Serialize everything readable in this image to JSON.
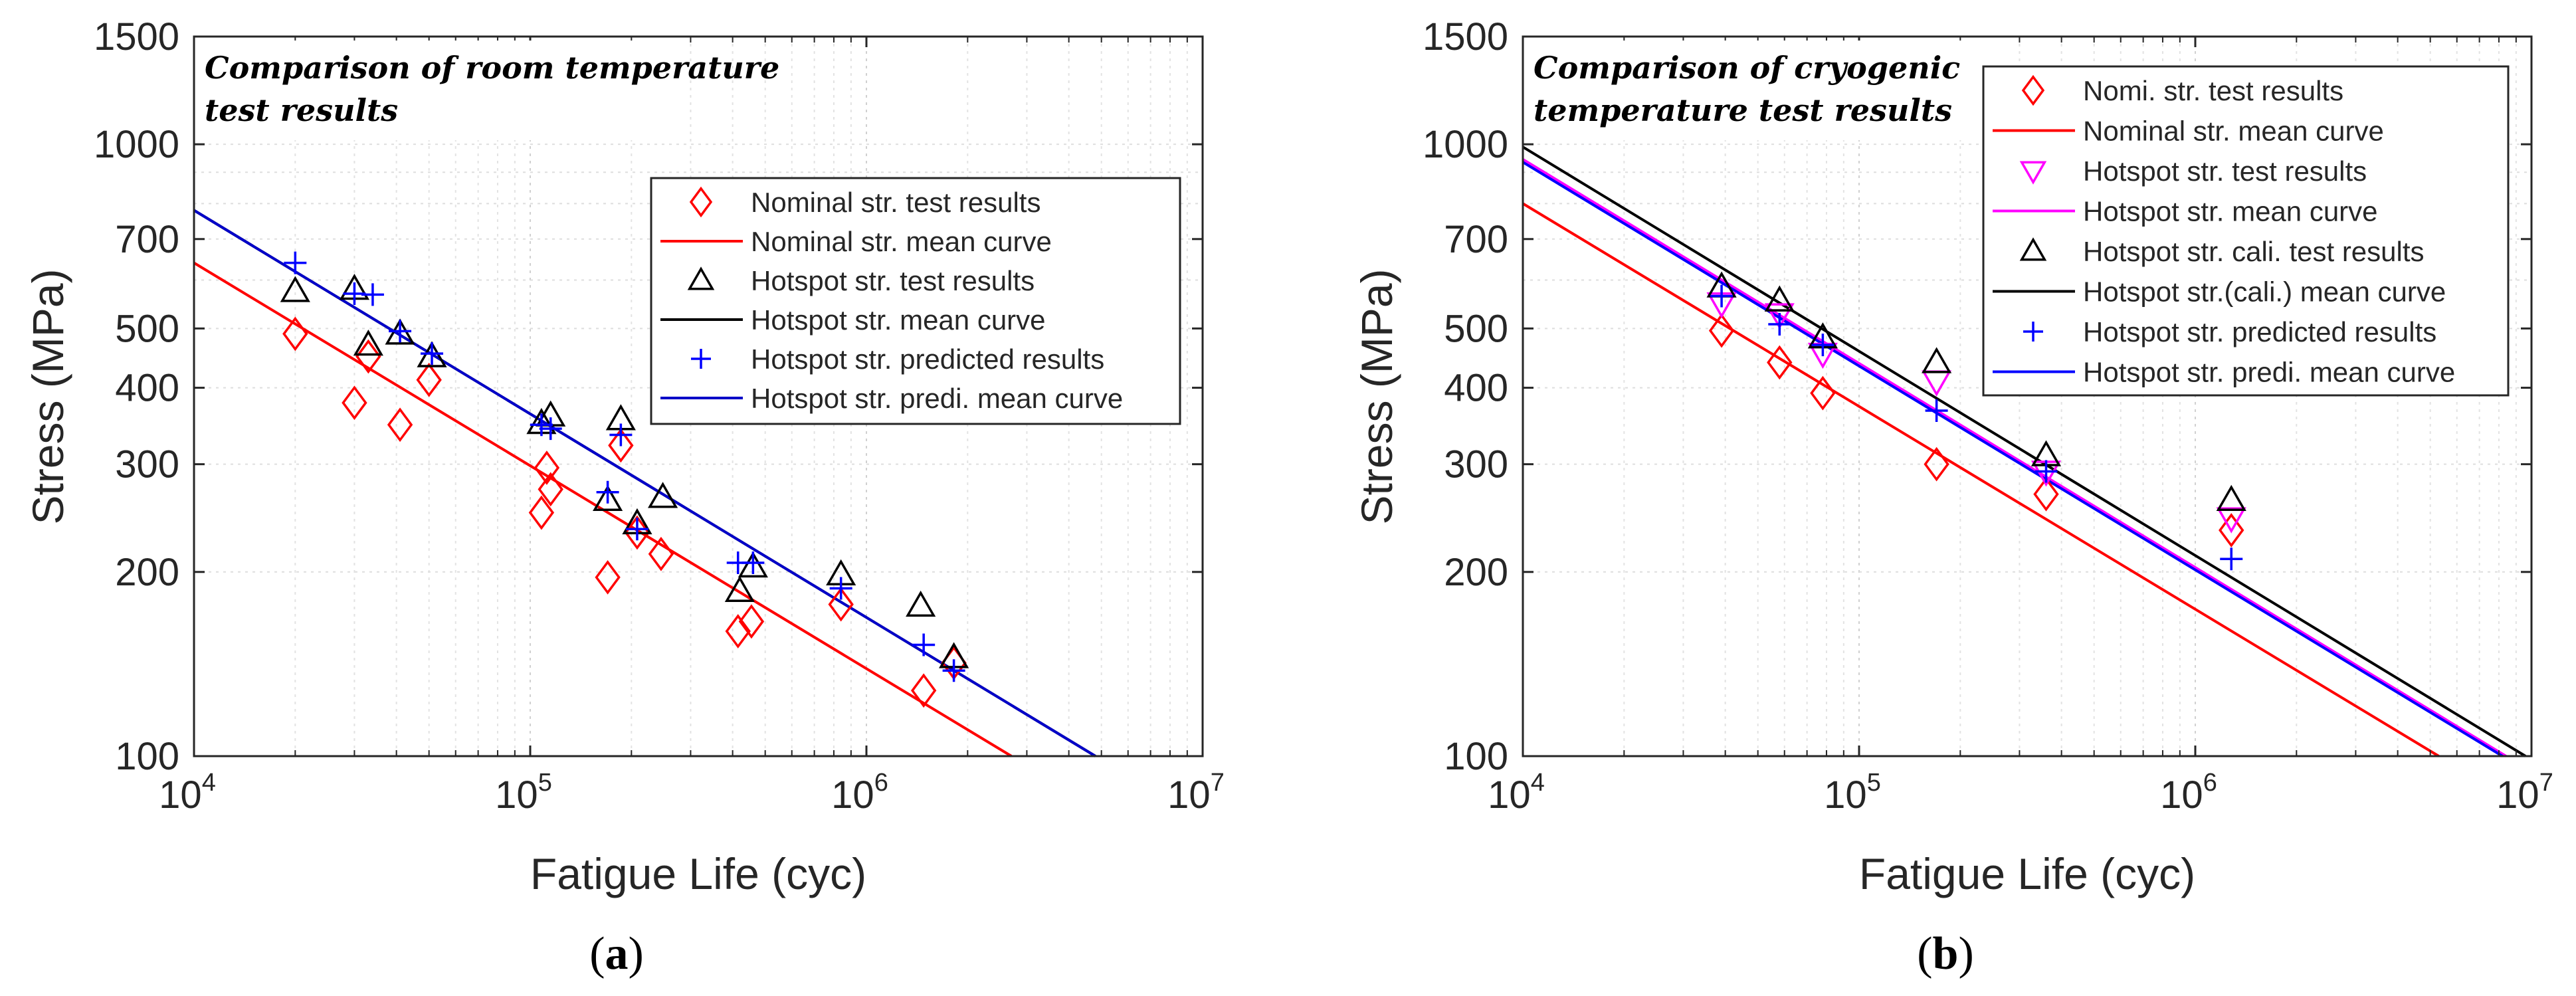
{
  "chart_data": [
    {
      "type": "scatter",
      "title": "Comparison of room temperature test results",
      "xlabel": "Fatigue Life (cyc)",
      "ylabel": "Stress (MPa)",
      "xscale": "log",
      "yscale": "log",
      "xlim": [
        10000,
        10000000
      ],
      "ylim": [
        100,
        1500
      ],
      "x_ticks": [
        10000,
        100000,
        1000000,
        10000000
      ],
      "x_tick_labels": [
        {
          "base": "10",
          "exp": "4"
        },
        {
          "base": "10",
          "exp": "5"
        },
        {
          "base": "10",
          "exp": "6"
        },
        {
          "base": "10",
          "exp": "7"
        }
      ],
      "y_ticks": [
        100,
        200,
        300,
        400,
        500,
        700,
        1000,
        1500
      ],
      "y_tick_labels": [
        "100",
        "200",
        "300",
        "400",
        "500",
        "700",
        "1000",
        "1500"
      ],
      "grid": true,
      "legend_position": "right",
      "caption": {
        "open": "(",
        "letter": "a",
        "close": ")"
      },
      "series": [
        {
          "name": "Nominal str. test results",
          "kind": "marker",
          "marker": "diamond",
          "color": "#ff0000",
          "x": [
            20000,
            30000,
            33000,
            41000,
            50000,
            108000,
            112000,
            115000,
            170000,
            186000,
            208000,
            245000,
            415000,
            455000,
            840000,
            1480000,
            1820000
          ],
          "y": [
            490,
            378,
            450,
            348,
            412,
            250,
            296,
            273,
            196,
            322,
            232,
            214,
            160,
            166,
            177,
            128,
            142
          ]
        },
        {
          "name": "Nominal str. mean curve",
          "kind": "line",
          "color": "#ff0000",
          "x": [
            10000,
            2700000
          ],
          "y": [
            640,
            100
          ]
        },
        {
          "name": "Hotspot str. test results",
          "kind": "marker",
          "marker": "triangle-up",
          "color": "#000000",
          "x": [
            20000,
            30000,
            33000,
            41000,
            51000,
            108000,
            115000,
            170000,
            186000,
            208000,
            248000,
            420000,
            460000,
            840000,
            1450000,
            1820000
          ],
          "y": [
            575,
            580,
            470,
            490,
            450,
            350,
            360,
            262,
            355,
            240,
            265,
            186,
            204,
            198,
            176,
            145
          ]
        },
        {
          "name": "Hotspot str. mean curve",
          "kind": "line",
          "color": "#000000",
          "x": [
            10000,
            4800000
          ],
          "y": [
            780,
            100
          ]
        },
        {
          "name": "Hotspot str. predicted results",
          "kind": "marker",
          "marker": "plus",
          "color": "#0000ff",
          "x": [
            20000,
            30000,
            34000,
            41000,
            51000,
            108000,
            115000,
            170000,
            186000,
            208000,
            415000,
            460000,
            840000,
            1480000,
            1820000
          ],
          "y": [
            640,
            570,
            568,
            495,
            455,
            348,
            343,
            270,
            335,
            235,
            207,
            207,
            188,
            152,
            138
          ]
        },
        {
          "name": "Hotspot str. predi. mean curve",
          "kind": "line",
          "color": "#0000c8",
          "x": [
            10000,
            4800000
          ],
          "y": [
            780,
            100
          ]
        }
      ]
    },
    {
      "type": "scatter",
      "title": "Comparison of cryogenic temperature test results",
      "xlabel": "Fatigue Life (cyc)",
      "ylabel": "Stress (MPa)",
      "xscale": "log",
      "yscale": "log",
      "xlim": [
        10000,
        10000000
      ],
      "ylim": [
        100,
        1500
      ],
      "x_ticks": [
        10000,
        100000,
        1000000,
        10000000
      ],
      "x_tick_labels": [
        {
          "base": "10",
          "exp": "4"
        },
        {
          "base": "10",
          "exp": "5"
        },
        {
          "base": "10",
          "exp": "6"
        },
        {
          "base": "10",
          "exp": "7"
        }
      ],
      "y_ticks": [
        100,
        200,
        300,
        400,
        500,
        700,
        1000,
        1500
      ],
      "y_tick_labels": [
        "100",
        "200",
        "300",
        "400",
        "500",
        "700",
        "1000",
        "1500"
      ],
      "grid": true,
      "legend_position": "top-right",
      "caption": {
        "open": "(",
        "letter": "b",
        "close": ")"
      },
      "series": [
        {
          "name": "Nomi. str. test results",
          "kind": "marker",
          "marker": "diamond",
          "color": "#ff0000",
          "x": [
            39000,
            58000,
            78000,
            170000,
            360000,
            1280000
          ],
          "y": [
            496,
            440,
            392,
            300,
            268,
            234
          ]
        },
        {
          "name": "Nominal str. mean curve",
          "kind": "line",
          "color": "#ff0000",
          "x": [
            10000,
            5300000
          ],
          "y": [
            800,
            100
          ]
        },
        {
          "name": "Hotspot str. test results",
          "kind": "marker",
          "marker": "triangle-down",
          "color": "#ff00ff",
          "x": [
            39000,
            58000,
            78000,
            170000,
            360000,
            1280000
          ],
          "y": [
            550,
            528,
            455,
            410,
            292,
            245
          ]
        },
        {
          "name": "Hotspot str. mean curve",
          "kind": "line",
          "color": "#ff00ff",
          "x": [
            10000,
            8400000
          ],
          "y": [
            945,
            100
          ]
        },
        {
          "name": "Hotspot str. cali. test results",
          "kind": "marker",
          "marker": "triangle-up",
          "color": "#000000",
          "x": [
            39000,
            58000,
            78000,
            170000,
            360000,
            1280000
          ],
          "y": [
            585,
            555,
            483,
            440,
            310,
            262
          ]
        },
        {
          "name": "Hotspot str.(cali.) mean curve",
          "kind": "line",
          "color": "#000000",
          "x": [
            10000,
            9600000
          ],
          "y": [
            990,
            100
          ]
        },
        {
          "name": "Hotspot str. predicted results",
          "kind": "marker",
          "marker": "plus",
          "color": "#0000ff",
          "x": [
            39000,
            58000,
            78000,
            170000,
            360000,
            1280000
          ],
          "y": [
            565,
            508,
            470,
            367,
            292,
            210
          ]
        },
        {
          "name": "Hotspot str. predi. mean curve",
          "kind": "line",
          "color": "#0000ff",
          "x": [
            10000,
            8200000
          ],
          "y": [
            935,
            100
          ]
        }
      ]
    }
  ]
}
